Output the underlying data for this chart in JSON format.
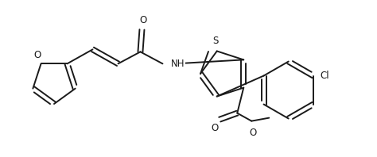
{
  "bg_color": "#ffffff",
  "line_color": "#1a1a1a",
  "line_width": 1.4,
  "font_size": 8.5,
  "figsize": [
    4.74,
    1.98
  ],
  "dpi": 100,
  "xlim": [
    0,
    474
  ],
  "ylim": [
    0,
    198
  ]
}
